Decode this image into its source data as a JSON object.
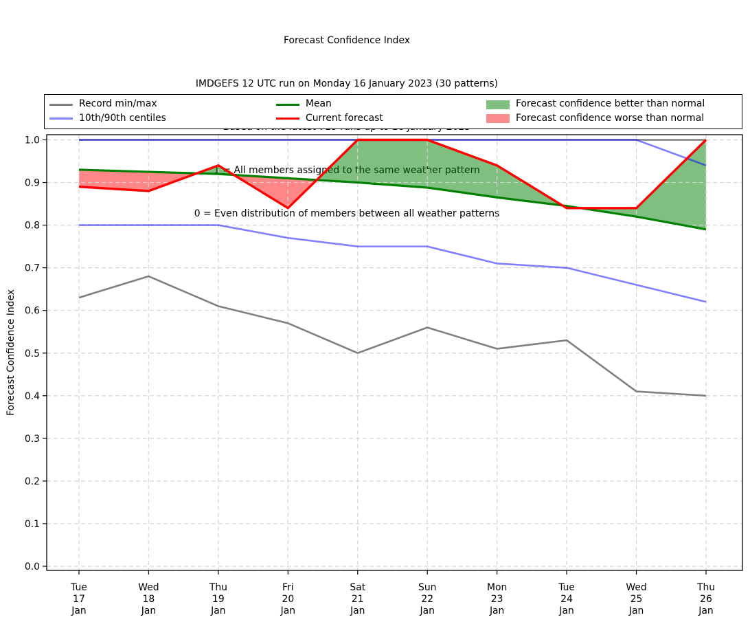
{
  "header": {
    "lines": [
      "Forecast Confidence Index",
      "IMDGEFS 12 UTC run on Monday 16 January 2023 (30 patterns)",
      "Based on the latest 713 runs up to 16 January 2023",
      "1 = All members assigned to the same weather pattern",
      "0 = Even distribution of members between all weather patterns"
    ]
  },
  "legend": {
    "items": [
      {
        "label": "Record min/max",
        "type": "line",
        "color": "#808080"
      },
      {
        "label": "10th/90th centiles",
        "type": "line",
        "color": "#7f7fff"
      },
      {
        "label": "Mean",
        "type": "line",
        "color": "#008000"
      },
      {
        "label": "Current forecast",
        "type": "line",
        "color": "#ff0000"
      },
      {
        "label": "Forecast confidence better than normal",
        "type": "patch",
        "color": "#7fbf7f"
      },
      {
        "label": "Forecast confidence worse than normal",
        "type": "patch",
        "color": "#f98c8c"
      }
    ]
  },
  "chart_data": {
    "type": "line",
    "title": "Forecast Confidence Index",
    "xlabel": "",
    "ylabel": "Forecast Confidence Index",
    "ylim": [
      0.0,
      1.0
    ],
    "grid": true,
    "legend_position": "top",
    "yticks": [
      0.0,
      0.1,
      0.2,
      0.3,
      0.4,
      0.5,
      0.6,
      0.7,
      0.8,
      0.9,
      1.0
    ],
    "x_tick_labels": [
      [
        "Tue",
        "17",
        "Jan"
      ],
      [
        "Wed",
        "18",
        "Jan"
      ],
      [
        "Thu",
        "19",
        "Jan"
      ],
      [
        "Fri",
        "20",
        "Jan"
      ],
      [
        "Sat",
        "21",
        "Jan"
      ],
      [
        "Sun",
        "22",
        "Jan"
      ],
      [
        "Mon",
        "23",
        "Jan"
      ],
      [
        "Tue",
        "24",
        "Jan"
      ],
      [
        "Wed",
        "25",
        "Jan"
      ],
      [
        "Thu",
        "26",
        "Jan"
      ]
    ],
    "series": [
      {
        "key": "record-max",
        "name": "Record max",
        "color": "#808080",
        "width": 2.6,
        "values": [
          1.0,
          1.0,
          1.0,
          1.0,
          1.0,
          1.0,
          1.0,
          1.0,
          1.0,
          1.0
        ]
      },
      {
        "key": "record-min",
        "name": "Record min",
        "color": "#808080",
        "width": 2.6,
        "values": [
          0.63,
          0.68,
          0.61,
          0.57,
          0.5,
          0.56,
          0.51,
          0.53,
          0.41,
          0.4
        ]
      },
      {
        "key": "90th-centile",
        "name": "90th centile",
        "color": "rgba(0,0,255,0.5)",
        "width": 2.6,
        "values": [
          1.0,
          1.0,
          1.0,
          1.0,
          1.0,
          1.0,
          1.0,
          1.0,
          1.0,
          0.94
        ]
      },
      {
        "key": "10th-centile",
        "name": "10th centile",
        "color": "rgba(0,0,255,0.5)",
        "width": 2.6,
        "values": [
          0.8,
          0.8,
          0.8,
          0.77,
          0.75,
          0.75,
          0.71,
          0.7,
          0.66,
          0.62
        ]
      },
      {
        "key": "mean",
        "name": "Mean",
        "color": "#008000",
        "width": 3.2,
        "values": [
          0.93,
          0.925,
          0.92,
          0.91,
          0.9,
          0.888,
          0.865,
          0.845,
          0.82,
          0.79
        ]
      },
      {
        "key": "current",
        "name": "Current forecast",
        "color": "#ff0000",
        "width": 3.4,
        "values": [
          0.89,
          0.88,
          0.94,
          0.84,
          1.0,
          1.0,
          0.94,
          0.84,
          0.84,
          1.0
        ]
      }
    ],
    "fills": {
      "between": [
        "current",
        "mean"
      ],
      "better_color": "rgba(0,128,0,0.5)",
      "worse_color": "rgba(255,0,0,0.47)",
      "better_label": "Forecast confidence better than normal",
      "worse_label": "Forecast confidence worse than normal"
    }
  }
}
